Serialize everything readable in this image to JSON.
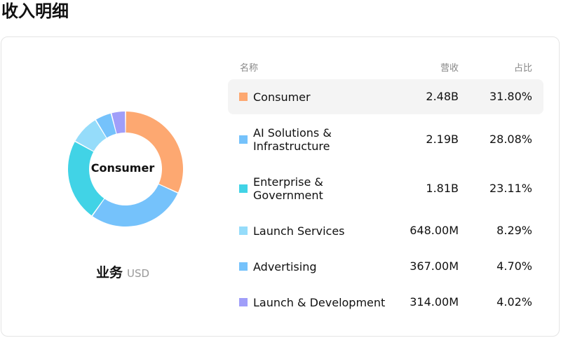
{
  "page": {
    "title": "收入明细"
  },
  "donut": {
    "center_label": "Consumer"
  },
  "caption": {
    "category": "业务",
    "currency": "USD"
  },
  "table": {
    "headers": {
      "name": "名称",
      "revenue": "营收",
      "share": "占比"
    }
  },
  "colors": {
    "Consumer": "#FDA871",
    "AI Solutions & Infrastructure": "#75C2FB",
    "Enterprise & Government": "#41D3E6",
    "Launch Services": "#95DCFA",
    "Advertising": "#75C2FB",
    "Launch & Development": "#A09EF9"
  },
  "chart_data": {
    "type": "pie",
    "title": "",
    "categories": [
      "Consumer",
      "AI Solutions & Infrastructure",
      "Enterprise & Government",
      "Launch Services",
      "Advertising",
      "Launch & Development"
    ],
    "values": [
      31.8,
      28.08,
      23.11,
      8.29,
      4.7,
      4.02
    ],
    "revenue_labels": [
      "2.48B",
      "2.19B",
      "1.81B",
      "648.00M",
      "367.00M",
      "314.00M"
    ],
    "share_labels": [
      "31.80%",
      "28.08%",
      "23.11%",
      "8.29%",
      "4.70%",
      "4.02%"
    ],
    "highlighted": "Consumer"
  }
}
